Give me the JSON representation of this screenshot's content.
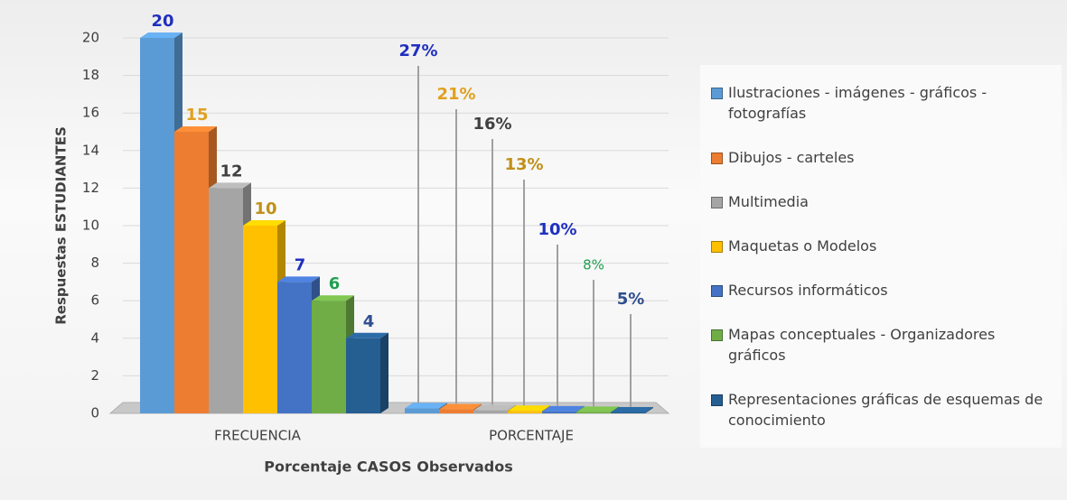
{
  "chart_data": {
    "type": "bar3d",
    "y_label": "Respuestas ESTUDIANTES",
    "x_label": "Porcentaje CASOS Observados",
    "categories": [
      "FRECUENCIA",
      "PORCENTAJE"
    ],
    "ylim": [
      0,
      20
    ],
    "yticks": [
      0,
      2,
      4,
      6,
      8,
      10,
      12,
      14,
      16,
      18,
      20
    ],
    "grid": true,
    "legend": "right",
    "series": [
      {
        "name": "Ilustraciones - imágenes - gráficos - fotografías",
        "color": "#5b9bd5",
        "label_color": "#1f2fbf",
        "values": [
          20,
          0.27
        ],
        "value_labels": [
          "20",
          "27%"
        ]
      },
      {
        "name": "Dibujos - carteles",
        "color": "#ed7d31",
        "label_color": "#e0a020",
        "values": [
          15,
          0.21
        ],
        "value_labels": [
          "15",
          "21%"
        ]
      },
      {
        "name": "Multimedia",
        "color": "#a5a5a5",
        "label_color": "#404040",
        "values": [
          12,
          0.16
        ],
        "value_labels": [
          "12",
          "16%"
        ]
      },
      {
        "name": "Maquetas o Modelos",
        "color": "#ffc000",
        "label_color": "#c09018",
        "values": [
          10,
          0.13
        ],
        "value_labels": [
          "10",
          "13%"
        ]
      },
      {
        "name": "Recursos informáticos",
        "color": "#4472c4",
        "label_color": "#2030c0",
        "values": [
          7,
          0.1
        ],
        "value_labels": [
          "7",
          "10%"
        ]
      },
      {
        "name": "Mapas conceptuales - Organizadores gráficos",
        "color": "#70ad47",
        "label_color": "#20a050",
        "values": [
          6,
          0.08
        ],
        "value_labels": [
          "6",
          "8%"
        ]
      },
      {
        "name": "Representaciones gráficas de esquemas de conocimiento",
        "color": "#255e91",
        "label_color": "#2f4f8f",
        "values": [
          4,
          0.05
        ],
        "value_labels": [
          "4",
          "5%"
        ]
      }
    ]
  }
}
